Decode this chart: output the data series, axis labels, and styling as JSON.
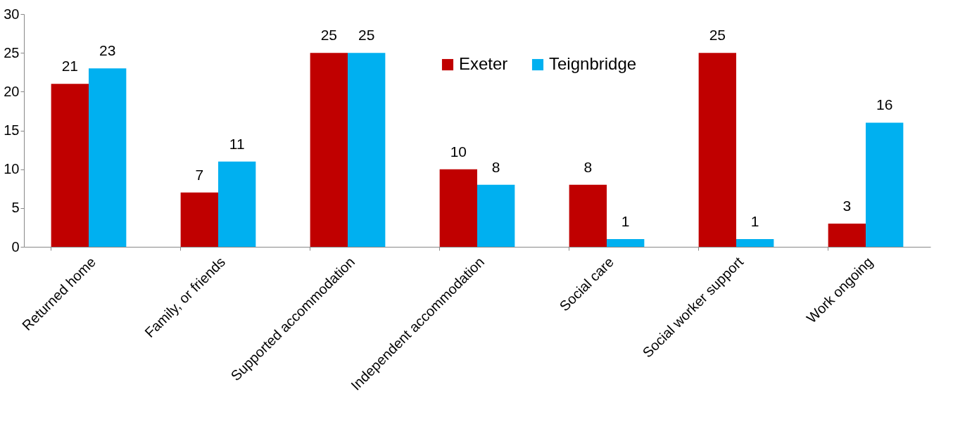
{
  "chart_data": {
    "type": "bar",
    "categories": [
      "Returned home",
      "Family, or friends",
      "Supported accommodation",
      "Independent accommodation",
      "Social care",
      "Social worker support",
      "Work ongoing"
    ],
    "series": [
      {
        "name": "Exeter",
        "color": "#c00000",
        "values": [
          21,
          7,
          25,
          10,
          8,
          25,
          3
        ]
      },
      {
        "name": "Teignbridge",
        "color": "#00b0f0",
        "values": [
          23,
          11,
          25,
          8,
          1,
          1,
          16
        ]
      }
    ],
    "ylim": [
      0,
      30
    ],
    "yticks": [
      0,
      5,
      10,
      15,
      20,
      25,
      30
    ],
    "grid": false,
    "legend": "top",
    "data_labels": true
  }
}
